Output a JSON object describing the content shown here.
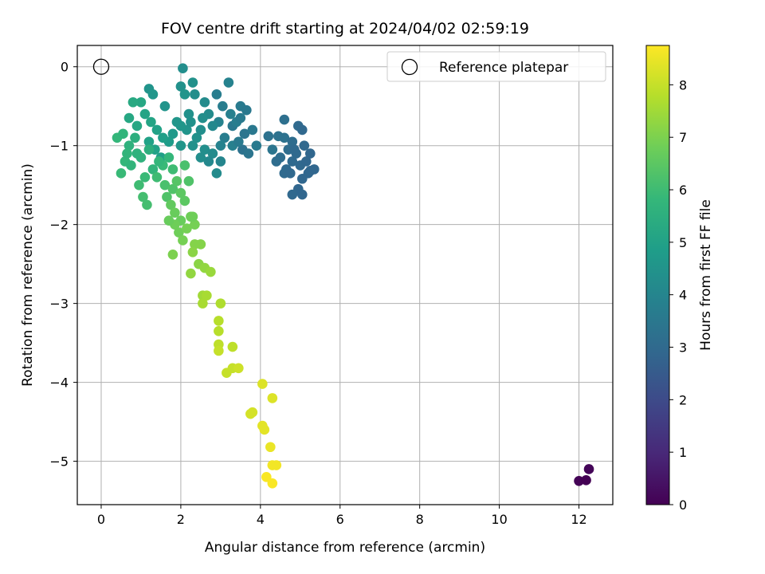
{
  "chart_data": {
    "type": "scatter",
    "title": "FOV centre drift starting at 2024/04/02 02:59:19",
    "xlabel": "Angular distance from reference (arcmin)",
    "ylabel": "Rotation from reference (arcmin)",
    "xlim": [
      -0.6,
      12.85
    ],
    "ylim": [
      -5.55,
      0.27
    ],
    "xticks": [
      0,
      2,
      4,
      6,
      8,
      10,
      12
    ],
    "yticks": [
      0,
      -1,
      -2,
      -3,
      -4,
      -5
    ],
    "xtick_labels": [
      "0",
      "2",
      "4",
      "6",
      "8",
      "10",
      "12"
    ],
    "ytick_labels": [
      "0",
      "−1",
      "−2",
      "−3",
      "−4",
      "−5"
    ],
    "grid": true,
    "legend": {
      "placement": "top-right",
      "label": "Reference platepar"
    },
    "reference_point": {
      "x": 0,
      "y": 0
    },
    "colorbar": {
      "label": "Hours from first FF file",
      "range": [
        0,
        8.75
      ],
      "ticks": [
        0,
        1,
        2,
        3,
        4,
        5,
        6,
        7,
        8
      ],
      "tick_labels": [
        "0",
        "1",
        "2",
        "3",
        "4",
        "5",
        "6",
        "7",
        "8"
      ],
      "colormap": "viridis",
      "stops": [
        "#440154",
        "#482878",
        "#3e4989",
        "#31688e",
        "#26828e",
        "#1f9e89",
        "#35b779",
        "#6ece58",
        "#b5de2b",
        "#fde725"
      ]
    },
    "series": [
      {
        "points": [
          [
            12.25,
            -5.1,
            0.1
          ],
          [
            12.0,
            -5.25,
            0.05
          ],
          [
            12.18,
            -5.24,
            0.0
          ],
          [
            3.2,
            -0.2,
            3.9
          ],
          [
            2.9,
            -0.35,
            3.7
          ],
          [
            3.5,
            -0.5,
            3.6
          ],
          [
            3.3,
            -0.75,
            3.5
          ],
          [
            3.6,
            -0.85,
            3.4
          ],
          [
            3.8,
            -0.8,
            3.5
          ],
          [
            3.55,
            -1.05,
            3.3
          ],
          [
            3.7,
            -1.1,
            3.4
          ],
          [
            3.9,
            -1.0,
            3.6
          ],
          [
            3.3,
            -1.0,
            3.8
          ],
          [
            3.1,
            -0.9,
            3.7
          ],
          [
            3.45,
            -0.95,
            3.6
          ],
          [
            3.0,
            -1.0,
            3.9
          ],
          [
            3.25,
            -0.6,
            3.8
          ],
          [
            3.05,
            -0.5,
            3.7
          ],
          [
            2.95,
            -0.7,
            3.9
          ],
          [
            3.4,
            -0.7,
            3.7
          ],
          [
            3.65,
            -0.55,
            3.5
          ],
          [
            3.5,
            -0.65,
            3.6
          ],
          [
            4.6,
            -0.67,
            3.2
          ],
          [
            4.45,
            -0.88,
            3.3
          ],
          [
            4.3,
            -1.05,
            3.4
          ],
          [
            4.6,
            -0.9,
            3.3
          ],
          [
            4.8,
            -0.95,
            3.1
          ],
          [
            4.95,
            -0.75,
            3.0
          ],
          [
            5.05,
            -0.8,
            2.95
          ],
          [
            4.7,
            -1.05,
            3.1
          ],
          [
            4.9,
            -1.1,
            3.0
          ],
          [
            5.1,
            -1.0,
            2.95
          ],
          [
            5.25,
            -1.1,
            2.9
          ],
          [
            5.35,
            -1.3,
            2.9
          ],
          [
            5.2,
            -1.35,
            2.9
          ],
          [
            5.0,
            -1.25,
            2.95
          ],
          [
            4.8,
            -1.2,
            3.0
          ],
          [
            4.65,
            -1.3,
            3.0
          ],
          [
            4.5,
            -1.15,
            3.1
          ],
          [
            4.6,
            -1.35,
            3.0
          ],
          [
            5.05,
            -1.42,
            2.9
          ],
          [
            4.95,
            -1.55,
            2.9
          ],
          [
            4.8,
            -1.62,
            2.95
          ],
          [
            5.05,
            -1.62,
            2.9
          ],
          [
            4.4,
            -1.2,
            3.1
          ],
          [
            5.15,
            -1.2,
            2.9
          ],
          [
            4.85,
            -1.05,
            3.0
          ],
          [
            4.2,
            -0.88,
            3.3
          ],
          [
            4.75,
            -1.35,
            2.95
          ],
          [
            5.25,
            -1.32,
            2.9
          ],
          [
            1.2,
            -0.28,
            4.5
          ],
          [
            1.3,
            -0.35,
            4.6
          ],
          [
            1.6,
            -0.5,
            4.5
          ],
          [
            2.0,
            -0.25,
            4.4
          ],
          [
            2.05,
            -0.02,
            4.3
          ],
          [
            2.1,
            -0.35,
            4.5
          ],
          [
            2.3,
            -0.2,
            4.4
          ],
          [
            2.35,
            -0.35,
            4.3
          ],
          [
            2.6,
            -0.45,
            4.2
          ],
          [
            2.7,
            -0.6,
            4.2
          ],
          [
            2.8,
            -0.75,
            4.1
          ],
          [
            2.5,
            -0.8,
            4.3
          ],
          [
            2.2,
            -0.6,
            4.4
          ],
          [
            2.15,
            -0.8,
            4.5
          ],
          [
            2.4,
            -0.9,
            4.4
          ],
          [
            2.6,
            -1.05,
            4.3
          ],
          [
            2.8,
            -1.1,
            4.2
          ],
          [
            2.7,
            -1.2,
            4.1
          ],
          [
            2.9,
            -1.35,
            4.2
          ],
          [
            3.0,
            -1.2,
            4.0
          ],
          [
            2.5,
            -1.15,
            4.3
          ],
          [
            2.3,
            -1.0,
            4.4
          ],
          [
            2.0,
            -0.75,
            4.6
          ],
          [
            1.8,
            -0.85,
            4.7
          ],
          [
            1.9,
            -0.7,
            4.6
          ],
          [
            1.7,
            -0.95,
            4.8
          ],
          [
            1.55,
            -0.9,
            4.9
          ],
          [
            1.4,
            -0.8,
            5.0
          ],
          [
            1.1,
            -0.6,
            5.1
          ],
          [
            1.0,
            -0.45,
            5.2
          ],
          [
            0.8,
            -0.45,
            5.3
          ],
          [
            0.7,
            -0.65,
            5.2
          ],
          [
            0.9,
            -0.75,
            5.2
          ],
          [
            1.2,
            -0.95,
            5.0
          ],
          [
            1.35,
            -1.05,
            5.0
          ],
          [
            1.5,
            -1.15,
            4.9
          ],
          [
            1.25,
            -0.7,
            5.1
          ],
          [
            2.25,
            -0.7,
            4.4
          ],
          [
            2.55,
            -0.65,
            4.3
          ],
          [
            2.0,
            -1.0,
            4.6
          ],
          [
            0.4,
            -0.9,
            5.8
          ],
          [
            0.55,
            -0.85,
            5.7
          ],
          [
            0.7,
            -1.0,
            5.6
          ],
          [
            0.9,
            -1.1,
            5.6
          ],
          [
            0.6,
            -1.2,
            5.8
          ],
          [
            0.5,
            -1.35,
            5.9
          ],
          [
            0.75,
            -1.25,
            5.7
          ],
          [
            1.0,
            -1.15,
            5.6
          ],
          [
            1.2,
            -1.05,
            5.5
          ],
          [
            1.3,
            -1.3,
            5.7
          ],
          [
            1.1,
            -1.4,
            5.9
          ],
          [
            0.95,
            -1.5,
            6.0
          ],
          [
            1.05,
            -1.65,
            6.1
          ],
          [
            1.15,
            -1.75,
            6.1
          ],
          [
            1.4,
            -1.4,
            6.0
          ],
          [
            1.55,
            -1.25,
            5.9
          ],
          [
            1.7,
            -1.15,
            5.8
          ],
          [
            1.8,
            -1.3,
            6.0
          ],
          [
            1.6,
            -1.5,
            6.2
          ],
          [
            1.65,
            -1.65,
            6.3
          ],
          [
            1.8,
            -1.55,
            6.3
          ],
          [
            0.65,
            -1.1,
            5.7
          ],
          [
            0.85,
            -0.9,
            5.5
          ],
          [
            1.45,
            -1.2,
            5.8
          ],
          [
            1.9,
            -1.45,
            6.4
          ],
          [
            2.0,
            -1.6,
            6.5
          ],
          [
            1.75,
            -1.75,
            6.6
          ],
          [
            1.85,
            -1.85,
            6.7
          ],
          [
            2.0,
            -1.95,
            6.7
          ],
          [
            2.1,
            -1.7,
            6.5
          ],
          [
            1.95,
            -2.1,
            6.8
          ],
          [
            2.05,
            -2.2,
            6.9
          ],
          [
            1.85,
            -2.0,
            6.8
          ],
          [
            2.25,
            -1.9,
            6.8
          ],
          [
            2.35,
            -2.0,
            6.9
          ],
          [
            2.15,
            -2.05,
            6.9
          ],
          [
            1.8,
            -2.38,
            7.0
          ],
          [
            2.35,
            -2.25,
            7.1
          ],
          [
            2.5,
            -2.25,
            7.1
          ],
          [
            2.3,
            -2.35,
            7.2
          ],
          [
            2.45,
            -2.5,
            7.2
          ],
          [
            2.6,
            -2.55,
            7.3
          ],
          [
            2.25,
            -2.62,
            7.3
          ],
          [
            2.75,
            -2.6,
            7.4
          ],
          [
            2.1,
            -1.25,
            6.2
          ],
          [
            2.2,
            -1.45,
            6.3
          ],
          [
            1.7,
            -1.95,
            6.7
          ],
          [
            2.3,
            -1.9,
            6.8
          ],
          [
            2.55,
            -2.9,
            7.5
          ],
          [
            2.65,
            -2.9,
            7.6
          ],
          [
            2.55,
            -3.0,
            7.6
          ],
          [
            3.0,
            -3.0,
            7.7
          ],
          [
            2.95,
            -3.22,
            7.8
          ],
          [
            2.95,
            -3.35,
            7.8
          ],
          [
            2.95,
            -3.52,
            7.9
          ],
          [
            3.3,
            -3.55,
            7.9
          ],
          [
            2.95,
            -3.6,
            8.0
          ],
          [
            3.3,
            -3.82,
            8.0
          ],
          [
            3.45,
            -3.82,
            8.1
          ],
          [
            3.15,
            -3.88,
            8.0
          ],
          [
            4.05,
            -4.02,
            8.3
          ],
          [
            4.3,
            -4.2,
            8.3
          ],
          [
            3.75,
            -4.4,
            8.2
          ],
          [
            3.8,
            -4.38,
            8.2
          ],
          [
            4.05,
            -4.55,
            8.4
          ],
          [
            4.1,
            -4.6,
            8.4
          ],
          [
            4.25,
            -4.82,
            8.5
          ],
          [
            4.3,
            -5.05,
            8.6
          ],
          [
            4.4,
            -5.05,
            8.6
          ],
          [
            4.15,
            -5.2,
            8.7
          ],
          [
            4.3,
            -5.28,
            8.7
          ]
        ]
      }
    ]
  }
}
